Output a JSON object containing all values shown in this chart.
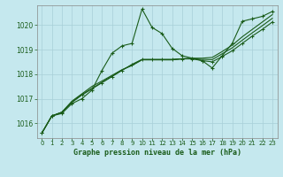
{
  "title": "Graphe pression niveau de la mer (hPa)",
  "background_color": "#c5e8ee",
  "line_color": "#1a5c1a",
  "grid_color": "#a8cfd8",
  "xlim": [
    -0.5,
    23.5
  ],
  "ylim": [
    1015.4,
    1020.8
  ],
  "yticks": [
    1016,
    1017,
    1018,
    1019,
    1020
  ],
  "xticks": [
    0,
    1,
    2,
    3,
    4,
    5,
    6,
    7,
    8,
    9,
    10,
    11,
    12,
    13,
    14,
    15,
    16,
    17,
    18,
    19,
    20,
    21,
    22,
    23
  ],
  "series": [
    [
      1015.6,
      1016.3,
      1016.4,
      1016.8,
      1017.0,
      1017.35,
      1018.15,
      1018.85,
      1019.15,
      1019.25,
      1020.65,
      1019.9,
      1019.65,
      1019.05,
      1018.75,
      1018.65,
      1018.55,
      1018.25,
      1018.75,
      1019.25,
      1020.15,
      1020.25,
      1020.35,
      1020.55
    ],
    [
      1015.6,
      1016.3,
      1016.45,
      1016.85,
      1017.15,
      1017.4,
      1017.65,
      1017.9,
      1018.15,
      1018.4,
      1018.6,
      1018.6,
      1018.6,
      1018.6,
      1018.62,
      1018.62,
      1018.55,
      1018.5,
      1018.72,
      1018.95,
      1019.25,
      1019.55,
      1019.82,
      1020.12
    ],
    [
      1015.6,
      1016.3,
      1016.45,
      1016.9,
      1017.2,
      1017.5,
      1017.72,
      1017.95,
      1018.18,
      1018.35,
      1018.58,
      1018.58,
      1018.58,
      1018.58,
      1018.63,
      1018.65,
      1018.65,
      1018.68,
      1018.92,
      1019.18,
      1019.52,
      1019.82,
      1020.12,
      1020.42
    ],
    [
      1015.6,
      1016.3,
      1016.45,
      1016.87,
      1017.17,
      1017.42,
      1017.67,
      1017.92,
      1018.17,
      1018.37,
      1018.59,
      1018.59,
      1018.59,
      1018.59,
      1018.62,
      1018.63,
      1018.6,
      1018.59,
      1018.83,
      1019.07,
      1019.38,
      1019.68,
      1019.97,
      1020.27
    ]
  ]
}
